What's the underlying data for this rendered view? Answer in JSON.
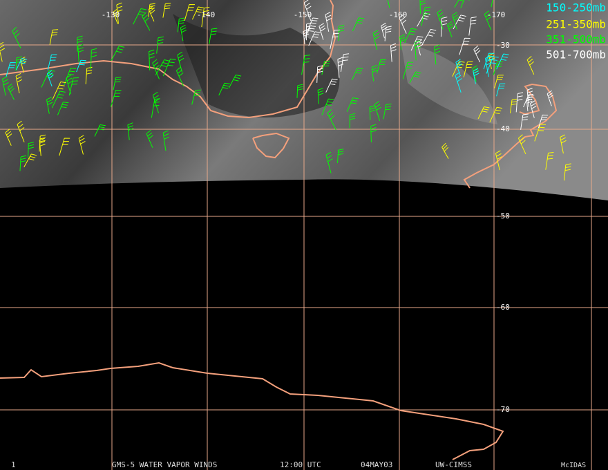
{
  "map": {
    "longitude_labels": [
      -130,
      -140,
      -150,
      -160,
      -170
    ],
    "latitude_labels": [
      -30,
      -40,
      -50,
      -60,
      -70
    ],
    "legend": [
      "150-250mb",
      "251-350mb",
      "351-500mb",
      "501-700mb"
    ],
    "footer": {
      "frame": "1",
      "title": "GMS-5 WATER VAPOR WINDS",
      "time": "12:00 UTC",
      "date": "04MAY03",
      "source": "UW-CIMSS",
      "software": "McIDAS"
    }
  }
}
